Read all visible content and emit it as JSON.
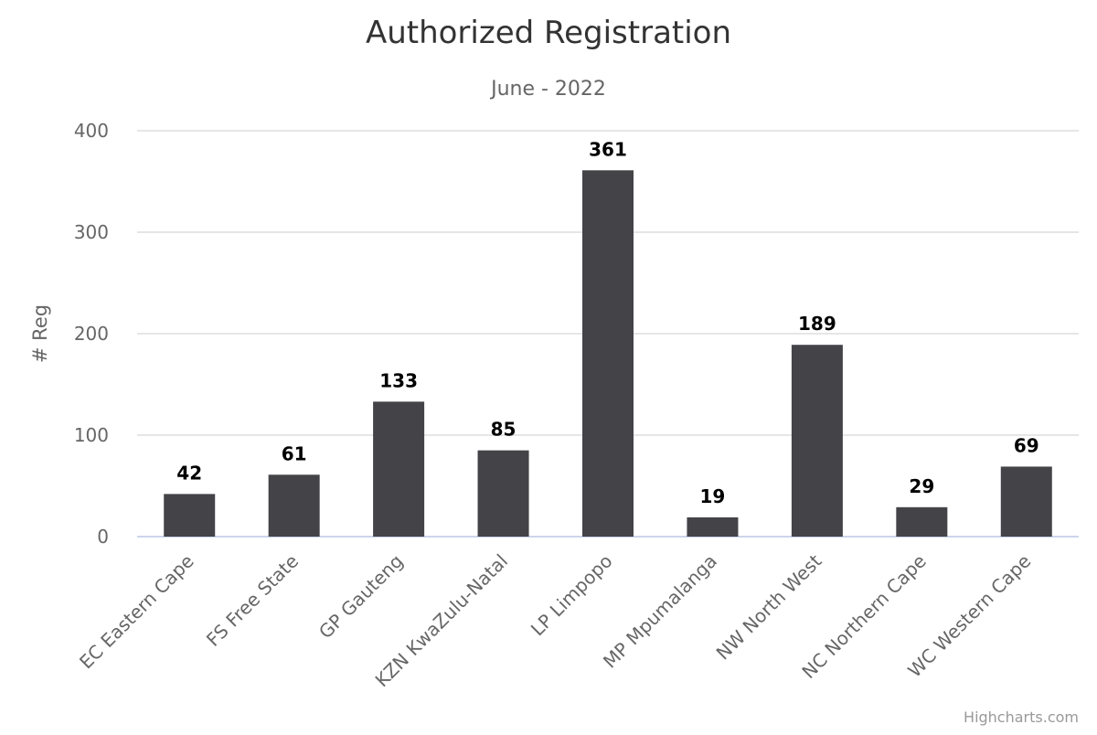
{
  "chart_data": {
    "type": "bar",
    "title": "Authorized Registration",
    "subtitle": "June - 2022",
    "ylabel": "# Reg",
    "xlabel": "",
    "ylim": [
      0,
      400
    ],
    "y_ticks": [
      "0",
      "100",
      "200",
      "300",
      "400"
    ],
    "y_tick_values": [
      0,
      100,
      200,
      300,
      400
    ],
    "grid": true,
    "legend": "none",
    "categories": [
      "EC Eastern Cape",
      "FS Free State",
      "GP Gauteng",
      "KZN KwaZulu-Natal",
      "LP Limpopo",
      "MP Mpumalanga",
      "NW North West",
      "NC Northern Cape",
      "WC Western Cape"
    ],
    "values": [
      42,
      61,
      133,
      85,
      361,
      19,
      189,
      29,
      69
    ],
    "data_labels": [
      "42",
      "61",
      "133",
      "85",
      "361",
      "19",
      "189",
      "29",
      "69"
    ],
    "bar_color": "#434348"
  },
  "credits": "Highcharts.com"
}
